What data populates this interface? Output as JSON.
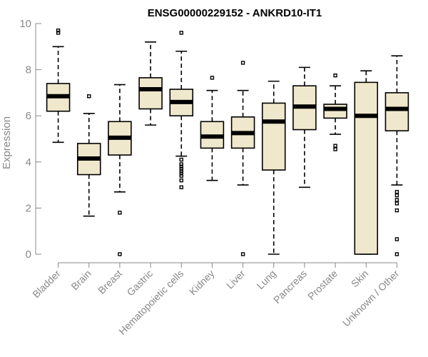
{
  "chart_data": {
    "type": "boxplot",
    "title": "ENSG00000229152 - ANKRD10-IT1",
    "xlabel": "",
    "ylabel": "Expression",
    "ylim": [
      0,
      10
    ],
    "yticks": [
      0,
      2,
      4,
      6,
      8,
      10
    ],
    "categories": [
      "Bladder",
      "Brain",
      "Breast",
      "Gastric",
      "Hematopoietic cells",
      "Kidney",
      "Liver",
      "Lung",
      "Pancreas",
      "Prostate",
      "Skin",
      "Unknown / Other"
    ],
    "boxes": [
      {
        "min": 4.85,
        "q1": 6.2,
        "median": 6.85,
        "q3": 7.4,
        "max": 9.0,
        "outliers": [
          9.6,
          9.7
        ]
      },
      {
        "min": 1.65,
        "q1": 3.45,
        "median": 4.15,
        "q3": 4.8,
        "max": 6.1,
        "outliers": [
          6.85
        ]
      },
      {
        "min": 2.7,
        "q1": 4.3,
        "median": 5.05,
        "q3": 5.75,
        "max": 7.35,
        "outliers": [
          1.8,
          0.0
        ]
      },
      {
        "min": 5.6,
        "q1": 6.3,
        "median": 7.15,
        "q3": 7.65,
        "max": 9.2,
        "outliers": []
      },
      {
        "min": 4.25,
        "q1": 6.0,
        "median": 6.6,
        "q3": 7.15,
        "max": 8.8,
        "outliers": [
          9.6,
          4.1,
          3.9,
          3.8,
          3.7,
          3.6,
          3.5,
          3.4,
          3.2,
          2.9
        ]
      },
      {
        "min": 3.2,
        "q1": 4.6,
        "median": 5.1,
        "q3": 5.75,
        "max": 7.1,
        "outliers": [
          7.65
        ]
      },
      {
        "min": 3.0,
        "q1": 4.6,
        "median": 5.25,
        "q3": 5.95,
        "max": 7.1,
        "outliers": [
          8.3,
          0.0
        ]
      },
      {
        "min": 0.0,
        "q1": 3.65,
        "median": 5.75,
        "q3": 6.55,
        "max": 7.5,
        "outliers": []
      },
      {
        "min": 2.9,
        "q1": 5.4,
        "median": 6.4,
        "q3": 7.3,
        "max": 8.1,
        "outliers": []
      },
      {
        "min": 5.2,
        "q1": 5.9,
        "median": 6.3,
        "q3": 6.5,
        "max": 7.3,
        "outliers": [
          7.75,
          4.7,
          4.55
        ]
      },
      {
        "min": 0.0,
        "q1": 0.0,
        "median": 6.0,
        "q3": 7.45,
        "max": 7.95,
        "outliers": []
      },
      {
        "min": 3.0,
        "q1": 5.35,
        "median": 6.3,
        "q3": 7.0,
        "max": 8.6,
        "outliers": [
          2.7,
          2.55,
          2.35,
          2.2,
          1.9,
          0.65,
          0.0
        ]
      }
    ]
  }
}
